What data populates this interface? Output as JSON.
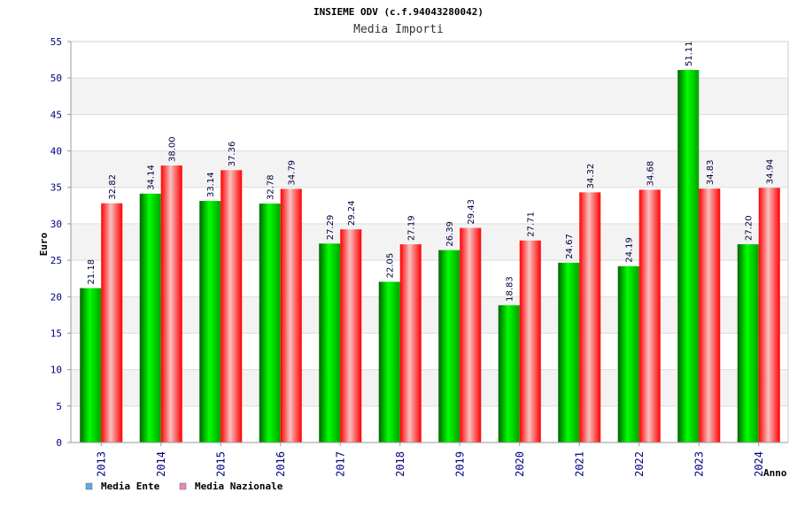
{
  "chart_data": {
    "type": "bar",
    "title": "INSIEME ODV (c.f.94043280042)",
    "subtitle": "Media Importi",
    "xlabel": "Anno",
    "ylabel": "Euro",
    "ylim": [
      0,
      55
    ],
    "yticks": [
      "0",
      "5",
      "10",
      "15",
      "20",
      "25",
      "30",
      "35",
      "40",
      "45",
      "50",
      "55"
    ],
    "categories": [
      "2013",
      "2014",
      "2015",
      "2016",
      "2017",
      "2018",
      "2019",
      "2020",
      "2021",
      "2022",
      "2023",
      "2024"
    ],
    "series": [
      {
        "name": "Media Ente",
        "values": [
          21.18,
          34.14,
          33.14,
          32.78,
          27.29,
          22.05,
          26.39,
          18.83,
          24.67,
          24.19,
          51.11,
          27.2
        ],
        "labels": [
          "21.18",
          "34.14",
          "33.14",
          "32.78",
          "27.29",
          "22.05",
          "26.39",
          "18.83",
          "24.67",
          "24.19",
          "51.11",
          "27.20"
        ],
        "color": "#00c000",
        "legend_color": "#5fa8e8"
      },
      {
        "name": "Media Nazionale",
        "values": [
          32.82,
          38.0,
          37.36,
          34.79,
          29.24,
          27.19,
          29.43,
          27.71,
          34.32,
          34.68,
          34.83,
          34.94
        ],
        "labels": [
          "32.82",
          "38.00",
          "37.36",
          "34.79",
          "29.24",
          "27.19",
          "29.43",
          "27.71",
          "34.32",
          "34.68",
          "34.83",
          "34.94"
        ],
        "color": "#ff0000",
        "legend_color": "#e88ab8"
      }
    ],
    "grid": true,
    "legend_position": "bottom-left"
  }
}
